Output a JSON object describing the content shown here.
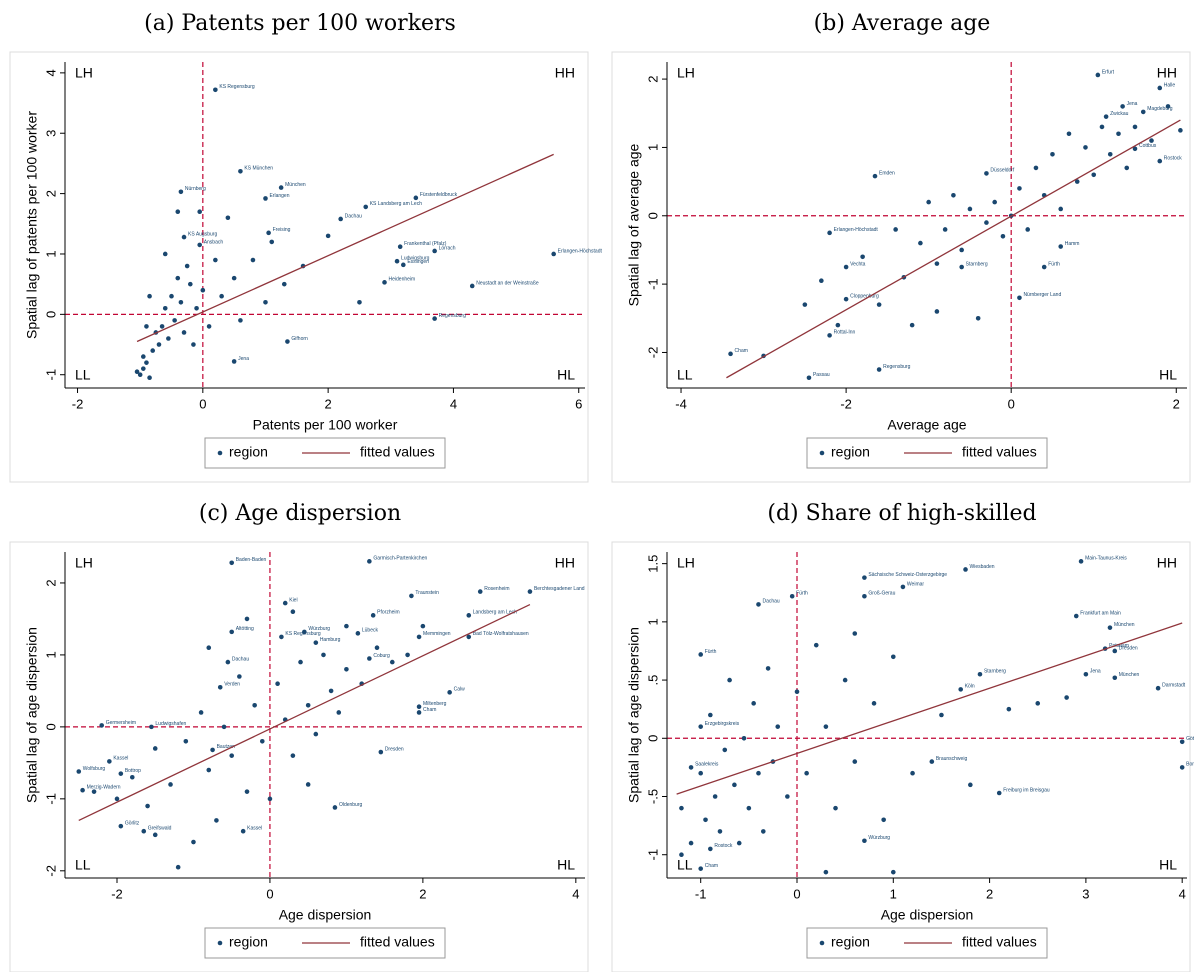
{
  "chart_data": [
    {
      "type": "scatter",
      "title": "(a) Patents per 100 workers",
      "x_label": "Patents per 100 worker",
      "y_label": "Spatial lag of patents per 100 worker",
      "xlim": [
        -2.2,
        6.1
      ],
      "ylim": [
        -1.22,
        4.18
      ],
      "xticks": [
        -2,
        0,
        2,
        4,
        6
      ],
      "yticks": [
        -1,
        0,
        1,
        2,
        3,
        4
      ],
      "vline": 0,
      "hline": 0,
      "quadrant_labels": [
        "LH",
        "HH",
        "LL",
        "HL"
      ],
      "series": [
        {
          "name": "region",
          "color": "#1a476f",
          "x": [
            0.2,
            0.6,
            1.25,
            -0.35,
            1.0,
            3.4,
            2.6,
            2.2,
            1.05,
            -0.3,
            -0.05,
            3.15,
            3.7,
            5.6,
            3.1,
            3.2,
            2.9,
            4.3,
            3.7,
            1.35,
            0.5,
            -1,
            -0.95,
            -0.9,
            -0.85,
            -0.8,
            -0.75,
            -0.7,
            -0.65,
            -0.6,
            -0.55,
            -0.5,
            -0.45,
            -0.4,
            -0.35,
            -0.3,
            -0.25,
            -0.2,
            -0.15,
            -0.1,
            -0.05,
            0,
            0.1,
            0.2,
            0.3,
            0.4,
            0.5,
            0.6,
            0.8,
            1,
            1.1,
            1.3,
            1.6,
            2,
            2.5,
            -0.95,
            -0.85,
            -0.6,
            -0.4,
            -0.9,
            -1.05
          ],
          "values": [
            3.72,
            2.37,
            2.1,
            2.03,
            1.92,
            1.93,
            1.78,
            1.58,
            1.35,
            1.28,
            1.15,
            1.12,
            1.05,
            1.0,
            0.88,
            0.82,
            0.53,
            0.47,
            -0.07,
            -0.45,
            -0.78,
            -1,
            -0.9,
            -0.8,
            -1.05,
            -0.6,
            -0.3,
            -0.5,
            -0.2,
            0.1,
            -0.4,
            0.3,
            -0.1,
            0.6,
            0.2,
            -0.3,
            0.8,
            0.5,
            -0.5,
            0.1,
            1.7,
            0.4,
            -0.2,
            0.9,
            0.3,
            1.6,
            0.6,
            -0.1,
            0.9,
            0.2,
            1.2,
            0.5,
            0.8,
            1.3,
            0.2,
            -0.7,
            0.3,
            1.0,
            1.7,
            -0.2,
            -0.95
          ],
          "labels": [
            "KS Regensburg",
            "KS München",
            "München",
            "Nürnberg",
            "Erlangen",
            "Fürstenfeldbruck",
            "KS Landsberg am Lech",
            "Dachau",
            "Freising",
            "KS Augsburg",
            "Ansbach",
            "Frankenthal (Pfalz)",
            "Lörrach",
            "Erlangen-Höchstadt",
            "Ludwigsburg",
            "Esslingen",
            "Heidenheim",
            "Neustadt an der Weinstraße",
            "Regensburg",
            "Gifhorn",
            "Jena",
            null,
            null,
            null,
            null,
            null,
            null,
            null,
            null,
            null,
            null,
            null,
            null,
            null,
            null,
            null,
            null,
            null,
            null,
            null,
            null,
            null,
            null,
            null,
            null,
            null,
            null,
            null,
            null,
            null,
            null,
            null,
            null,
            null,
            null,
            null,
            null,
            null,
            null,
            null,
            null
          ]
        },
        {
          "name": "fitted values",
          "color": "#90353b",
          "x": [
            -1.05,
            5.6
          ],
          "values": [
            -0.45,
            2.65
          ]
        }
      ]
    },
    {
      "type": "scatter",
      "title": "(b) Average age",
      "x_label": "Average age",
      "y_label": "Spatial lag of average age",
      "xlim": [
        -4.17,
        2.13
      ],
      "ylim": [
        -2.52,
        2.25
      ],
      "xticks": [
        -4,
        -2,
        0,
        2
      ],
      "yticks": [
        -2,
        -1,
        0,
        1,
        2
      ],
      "vline": 0,
      "hline": 0,
      "quadrant_labels": [
        "LH",
        "HH",
        "LL",
        "HL"
      ],
      "series": [
        {
          "name": "region",
          "color": "#1a476f",
          "x": [
            1.05,
            1.8,
            1.35,
            1.6,
            1.15,
            1.5,
            1.8,
            -0.3,
            -1.65,
            -2.2,
            0.6,
            -2.0,
            0.4,
            -0.6,
            0.1,
            -2.0,
            -2.2,
            -3.4,
            -2.45,
            -1.6,
            -3.0,
            -2.5,
            -2.3,
            -2.1,
            -1.8,
            -1.6,
            -1.4,
            -1.3,
            -1.1,
            -1.0,
            -0.9,
            -0.8,
            -0.7,
            -0.6,
            -0.5,
            -0.4,
            -0.3,
            -0.2,
            -0.1,
            0,
            0.1,
            0.2,
            0.3,
            0.4,
            0.5,
            0.6,
            0.7,
            0.8,
            0.9,
            1.0,
            1.1,
            1.2,
            1.3,
            1.4,
            1.5,
            1.7,
            1.9,
            2.05,
            -0.9,
            -1.2
          ],
          "values": [
            2.06,
            1.87,
            1.6,
            1.52,
            1.45,
            0.98,
            0.8,
            0.62,
            0.58,
            -0.25,
            -0.45,
            -0.75,
            -0.75,
            -0.75,
            -1.2,
            -1.22,
            -1.75,
            -2.02,
            -2.37,
            -2.25,
            -2.05,
            -1.3,
            -0.95,
            -1.6,
            -0.6,
            -1.3,
            -0.2,
            -0.9,
            -0.4,
            0.2,
            -1.4,
            -0.2,
            0.3,
            -0.5,
            0.1,
            -1.5,
            -0.1,
            0.2,
            -0.3,
            0.0,
            0.4,
            -0.2,
            0.7,
            0.3,
            0.9,
            0.1,
            1.2,
            0.5,
            1.0,
            0.6,
            1.3,
            0.9,
            1.2,
            0.7,
            1.3,
            1.1,
            1.6,
            1.25,
            -0.7,
            -1.6
          ],
          "labels": [
            "Erfurt",
            "Halle",
            "Jena",
            "Magdeburg",
            "Zwickau",
            "Cottbus",
            "Rostock",
            "Düsseldorf",
            "Emden",
            "Erlangen-Höchstadt",
            "Hamm",
            "Vechta",
            "Fürth",
            "Starnberg",
            "Nürnberger Land",
            "Cloppenburg",
            "Rottal-Inn",
            "Cham",
            "Passau",
            "Regensburg",
            null,
            null,
            null,
            null,
            null,
            null,
            null,
            null,
            null,
            null,
            null,
            null,
            null,
            null,
            null,
            null,
            null,
            null,
            null,
            null,
            null,
            null,
            null,
            null,
            null,
            null,
            null,
            null,
            null,
            null,
            null,
            null,
            null,
            null,
            null,
            null,
            null,
            null,
            null,
            null
          ]
        },
        {
          "name": "fitted values",
          "color": "#90353b",
          "x": [
            -3.45,
            2.05
          ],
          "values": [
            -2.37,
            1.4
          ]
        }
      ]
    },
    {
      "type": "scatter",
      "title": "(c) Age dispersion",
      "x_label": "Age dispersion",
      "y_label": "Spatial lag of age dispersion",
      "xlim": [
        -2.68,
        4.12
      ],
      "ylim": [
        -2.1,
        2.43
      ],
      "xticks": [
        -2,
        0,
        2,
        4
      ],
      "yticks": [
        -2,
        -1,
        0,
        1,
        2
      ],
      "vline": 0,
      "hline": 0,
      "quadrant_labels": [
        "LH",
        "HH",
        "LL",
        "HL"
      ],
      "series": [
        {
          "name": "region",
          "color": "#1a476f",
          "x": [
            -0.5,
            1.3,
            2.75,
            3.4,
            1.85,
            0.2,
            1.35,
            2.6,
            -0.5,
            0.45,
            0.15,
            1.95,
            2.6,
            1.15,
            0.6,
            1.3,
            -0.55,
            -0.65,
            2.35,
            1.95,
            1.95,
            -2.2,
            -1.55,
            -0.75,
            1.45,
            -2.1,
            -2.5,
            -1.95,
            -2.45,
            0.85,
            -1.95,
            -1.65,
            -0.35,
            -2.3,
            -2.0,
            -1.8,
            -1.6,
            -1.5,
            -1.3,
            -1.2,
            -1.1,
            -1.0,
            -0.9,
            -0.8,
            -0.7,
            -0.6,
            -0.5,
            -0.4,
            -0.3,
            -0.2,
            -0.1,
            0,
            0.1,
            0.2,
            0.3,
            0.4,
            0.5,
            0.6,
            0.7,
            0.8,
            0.9,
            1.0,
            1.2,
            1.4,
            1.6,
            1.8,
            2.0,
            -0.8,
            -0.3,
            0.3,
            1.0,
            -1.5,
            0.5
          ],
          "values": [
            2.28,
            2.3,
            1.88,
            1.88,
            1.82,
            1.72,
            1.55,
            1.55,
            1.32,
            1.32,
            1.25,
            1.25,
            1.25,
            1.3,
            1.17,
            0.95,
            0.9,
            0.55,
            0.48,
            0.28,
            0.2,
            0.02,
            0.0,
            -0.32,
            -0.35,
            -0.48,
            -0.62,
            -0.65,
            -0.88,
            -1.12,
            -1.38,
            -1.45,
            -1.45,
            -0.9,
            -1.0,
            -0.7,
            -1.1,
            -0.3,
            -0.8,
            -1.95,
            -0.2,
            -1.6,
            0.2,
            -0.6,
            -1.3,
            0.0,
            -0.4,
            0.7,
            -0.9,
            0.3,
            -0.2,
            -1.0,
            0.6,
            0.1,
            -0.4,
            0.9,
            0.3,
            -0.1,
            1.0,
            0.5,
            0.2,
            0.8,
            0.6,
            1.1,
            0.9,
            1.0,
            1.4,
            1.1,
            1.5,
            1.6,
            1.4,
            -1.5,
            -0.8
          ],
          "labels": [
            "Baden-Baden",
            "Garmisch-Partenkirchen",
            "Rosenheim",
            "Berchtesgadener Land",
            "Traunstein",
            "Kiel",
            "Pforzheim",
            "Landsberg am Lech",
            "Altötting",
            "Würzburg",
            "KS Regensburg",
            "Memmingen",
            "Bad Tölz-Wolfratshausen",
            "Lübeck",
            "Hamburg",
            "Coburg",
            "Dachau",
            "Verden",
            "Calw",
            "Miltenberg",
            "Cham",
            "Germersheim",
            "Ludwigshafen",
            "Bautzen",
            "Dresden",
            "Kassel",
            "Wolfsburg",
            "Bottrop",
            "Merzig-Wadern",
            "Oldenburg",
            "Görlitz",
            "Greifswald",
            "Kassel",
            null,
            null,
            null,
            null,
            null,
            null,
            null,
            null,
            null,
            null,
            null,
            null,
            null,
            null,
            null,
            null,
            null,
            null,
            null,
            null,
            null,
            null,
            null,
            null,
            null,
            null,
            null,
            null,
            null,
            null,
            null,
            null,
            null,
            null,
            null,
            null,
            null,
            null,
            null,
            null
          ]
        },
        {
          "name": "fitted values",
          "color": "#90353b",
          "x": [
            -2.5,
            3.4
          ],
          "values": [
            -1.3,
            1.7
          ]
        }
      ]
    },
    {
      "type": "scatter",
      "title": "(d) Share of high-skilled",
      "x_label": "Age dispersion",
      "y_label": "Spatial lag of age dispersion",
      "xlim": [
        -1.35,
        4.05
      ],
      "ylim": [
        -1.2,
        1.6
      ],
      "xticks": [
        -1,
        0,
        1,
        2,
        3,
        4
      ],
      "yticks": [
        -1,
        {
          "value": -0.5,
          "label": "-.5"
        },
        0,
        {
          "value": 0.5,
          "label": ".5"
        },
        1,
        1.5
      ],
      "vline": 0,
      "hline": 0,
      "quadrant_labels": [
        "LH",
        "HH",
        "LL",
        "HL"
      ],
      "series": [
        {
          "name": "region",
          "color": "#1a476f",
          "x": [
            2.95,
            1.75,
            0.7,
            1.1,
            0.7,
            -0.4,
            -0.05,
            2.9,
            3.25,
            3.2,
            3.3,
            -1.0,
            1.9,
            3.0,
            3.3,
            3.75,
            1.7,
            -1.0,
            -1.1,
            4.0,
            4.0,
            1.4,
            2.1,
            0.7,
            -0.9,
            -1.0,
            -1.2,
            -1.1,
            -1.0,
            -0.95,
            -0.9,
            -0.85,
            -0.8,
            -0.75,
            -0.7,
            -0.65,
            -0.6,
            -0.55,
            -0.5,
            -0.45,
            -0.4,
            -0.35,
            -0.3,
            -0.25,
            -0.2,
            -0.1,
            0,
            0.1,
            0.2,
            0.3,
            0.4,
            0.5,
            0.6,
            0.8,
            0.9,
            1.0,
            1.2,
            1.5,
            1.8,
            2.2,
            2.5,
            2.8,
            1.0,
            0.3,
            -1.2,
            0.6
          ],
          "values": [
            1.52,
            1.45,
            1.38,
            1.3,
            1.22,
            1.15,
            1.22,
            1.05,
            0.95,
            0.77,
            0.75,
            0.72,
            0.55,
            0.55,
            0.52,
            0.43,
            0.42,
            0.1,
            -0.25,
            -0.03,
            -0.25,
            -0.2,
            -0.47,
            -0.88,
            -0.95,
            -1.12,
            -0.6,
            -0.9,
            -0.3,
            -0.7,
            0.2,
            -0.5,
            -0.8,
            -0.1,
            0.5,
            -0.4,
            -0.9,
            0.0,
            -0.6,
            0.3,
            -0.3,
            -0.8,
            0.6,
            -0.2,
            0.1,
            -0.5,
            0.4,
            -0.3,
            0.8,
            0.1,
            -0.6,
            0.5,
            -0.2,
            0.3,
            -0.7,
            0.7,
            -0.3,
            0.2,
            -0.4,
            0.25,
            0.3,
            0.35,
            -1.15,
            -1.15,
            -1.0,
            0.9
          ],
          "labels": [
            "Main-Taunus-Kreis",
            "Wiesbaden",
            "Sächsische Schweiz-Osterzgebirge",
            "Weimar",
            "Groß-Gerau",
            "Dachau",
            "Fürth",
            "Frankfurt am Main",
            "München",
            "Potsdam",
            "Dresden",
            "Fürth",
            "Starnberg",
            "Jena",
            "München",
            "Darmstadt",
            "Köln",
            "Erzgebirgskreis",
            "Saalekreis",
            "Göttingen",
            "Bonn",
            "Braunschweig",
            "Freiburg im Breisgau",
            "Würzburg",
            "Rostock",
            "Cham",
            null,
            null,
            null,
            null,
            null,
            null,
            null,
            null,
            null,
            null,
            null,
            null,
            null,
            null,
            null,
            null,
            null,
            null,
            null,
            null,
            null,
            null,
            null,
            null,
            null,
            null,
            null,
            null,
            null,
            null,
            null,
            null,
            null,
            null,
            null,
            null,
            null,
            null,
            null,
            null
          ]
        },
        {
          "name": "fitted values",
          "color": "#90353b",
          "x": [
            -1.25,
            4.0
          ],
          "values": [
            -0.48,
            0.99
          ]
        }
      ]
    }
  ]
}
